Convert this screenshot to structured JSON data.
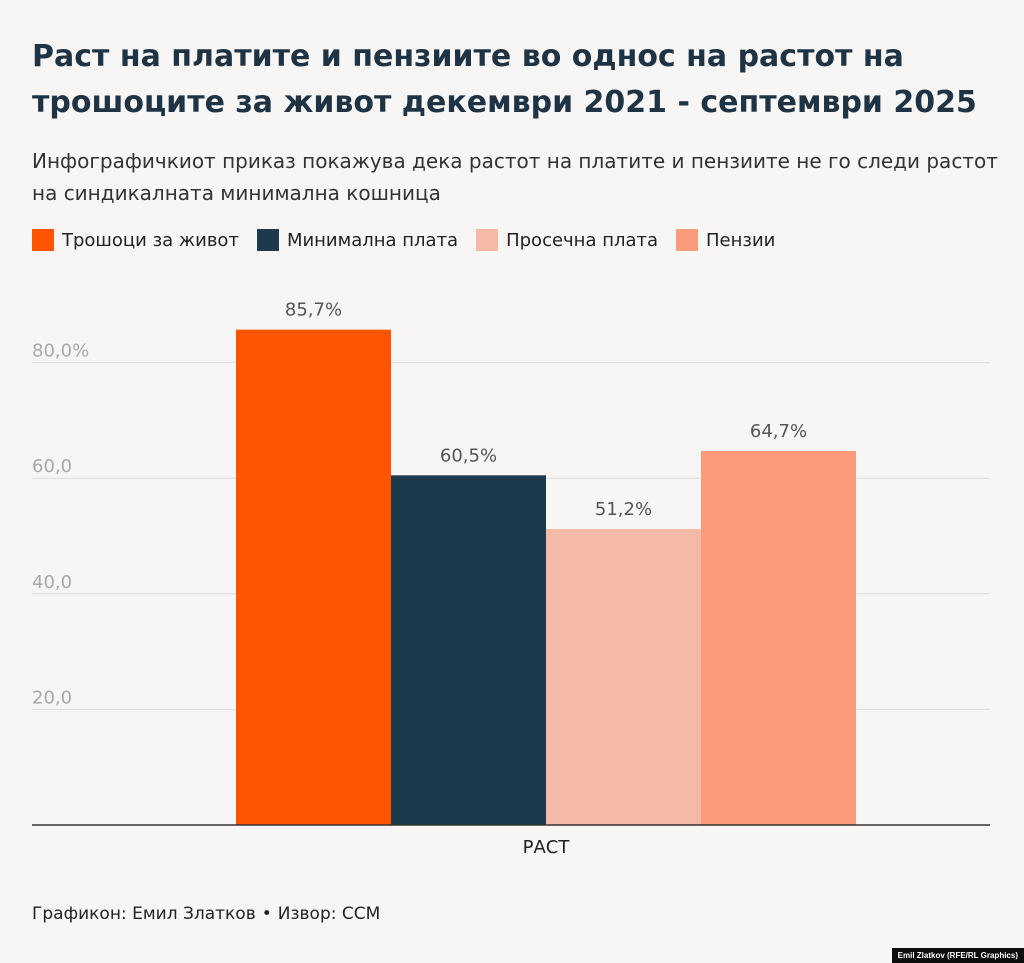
{
  "header": {
    "title": "Раст на платите и пензиите во однос на растот на трошоците за живот декември 2021 - септември 2025",
    "subtitle": "Инфографичкиот приказ покажува дека растот на платите и пензиите не го следи растот на синдикалната минимална кошница"
  },
  "legend": [
    {
      "label": "Трошоци за живот",
      "color": "#ff5500"
    },
    {
      "label": "Минимална плата",
      "color": "#1c3a4b"
    },
    {
      "label": "Просечна плата",
      "color": "#f5b9a8"
    },
    {
      "label": "Пензии",
      "color": "#fa9b7b"
    }
  ],
  "chart_data": {
    "type": "bar",
    "title": "Раст на платите и пензиите во однос на растот на трошоците за живот декември 2021 - септември 2025",
    "categories": [
      "РАСТ"
    ],
    "series": [
      {
        "name": "Трошоци за живот",
        "values": [
          85.7
        ],
        "label": "85,7%",
        "color": "#ff5500"
      },
      {
        "name": "Минимална плата",
        "values": [
          60.5
        ],
        "label": "60,5%",
        "color": "#1c3a4b"
      },
      {
        "name": "Просечна плата",
        "values": [
          51.2
        ],
        "label": "51,2%",
        "color": "#f5b9a8"
      },
      {
        "name": "Пензии",
        "values": [
          64.7
        ],
        "label": "64,7%",
        "color": "#fa9b7b"
      }
    ],
    "yticks": [
      {
        "value": 20,
        "label": "20,0"
      },
      {
        "value": 40,
        "label": "40,0"
      },
      {
        "value": 60,
        "label": "60,0"
      },
      {
        "value": 80,
        "label": "80,0%"
      }
    ],
    "ylim": [
      0,
      100
    ],
    "xlabel": "",
    "ylabel": "",
    "grid": true,
    "legend_position": "top"
  },
  "footer": {
    "chart_by": "Графикон: Емил Златков",
    "separator": "•",
    "source": "Извор: ССМ"
  },
  "credit": "Emil Zlatkov (RFE/RL Graphics)"
}
